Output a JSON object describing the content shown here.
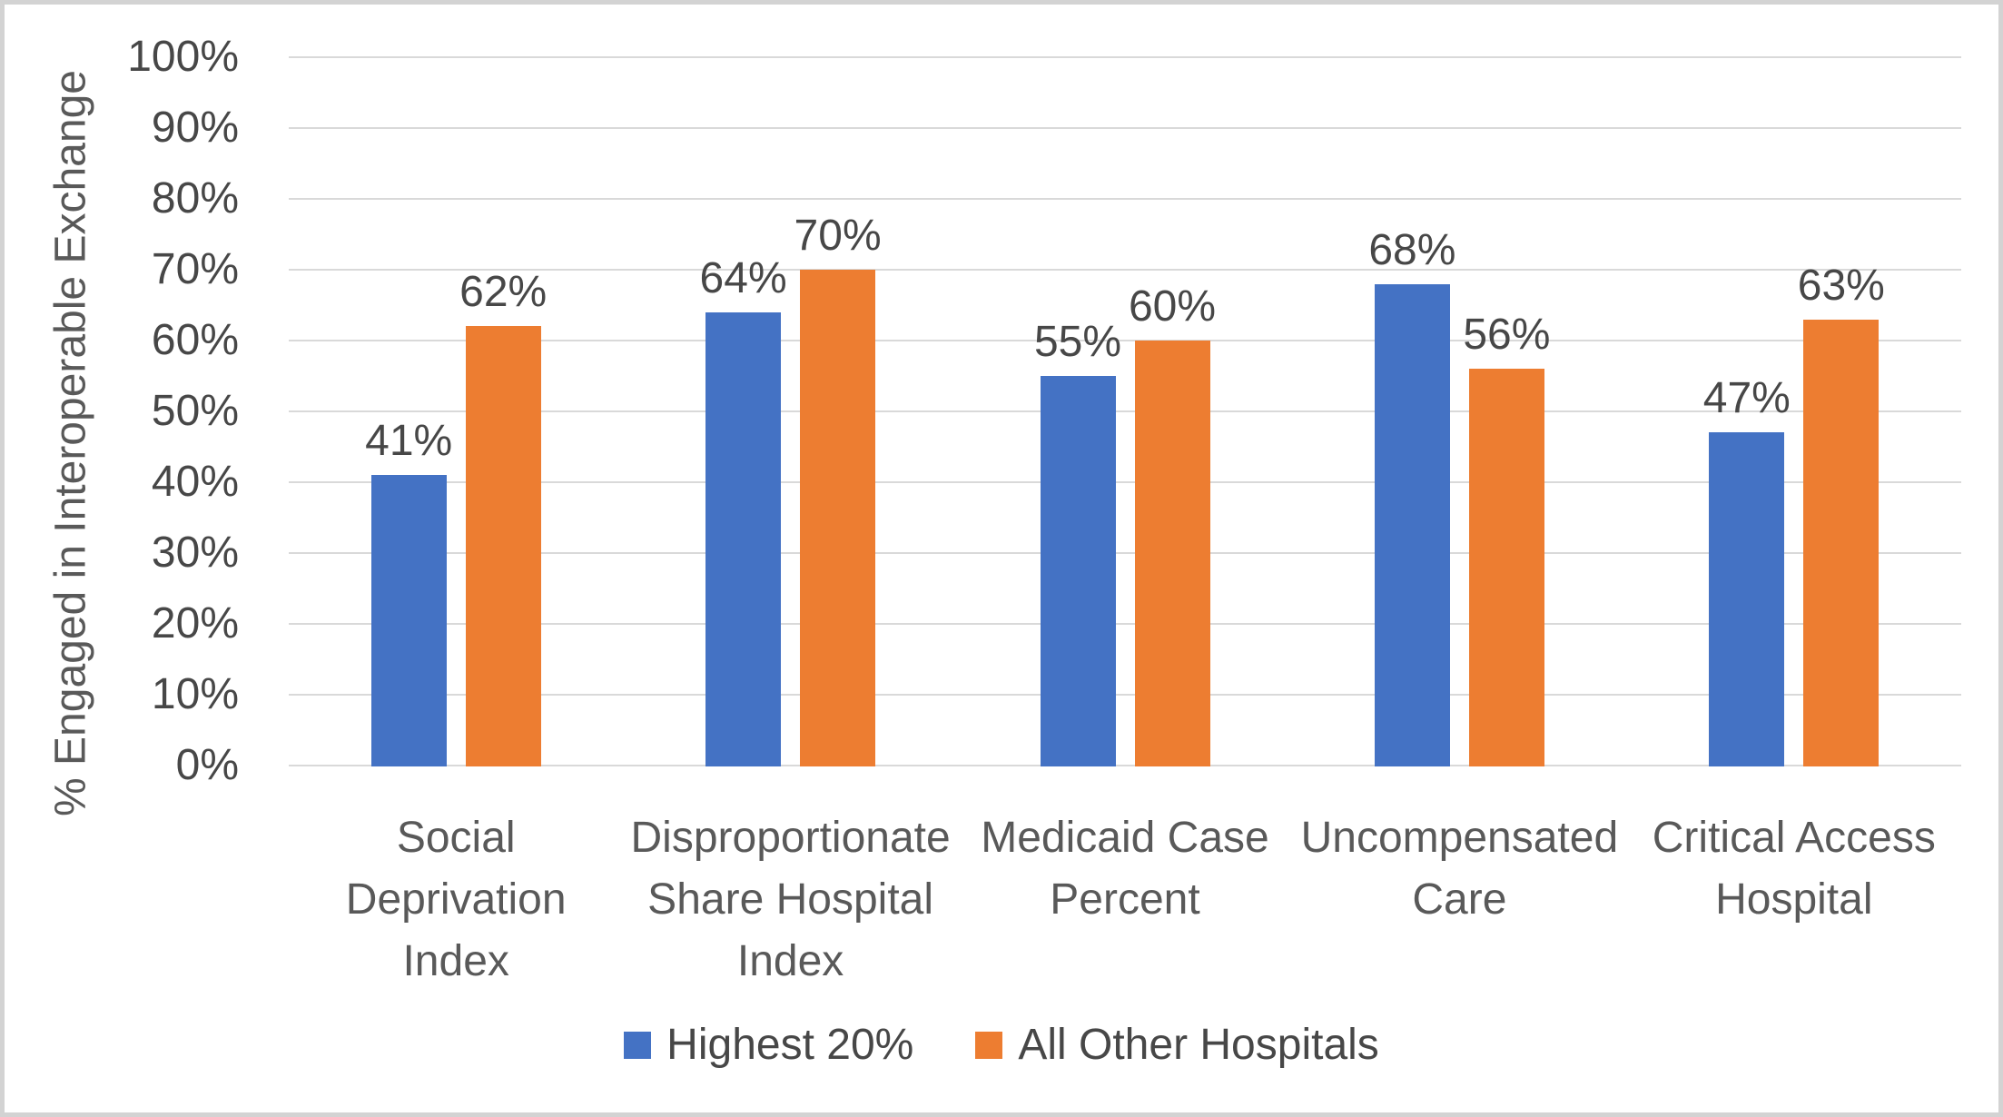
{
  "chart_data": {
    "type": "bar",
    "title": "",
    "ylabel": "% Engaged in Interoperable Exchange",
    "xlabel": "",
    "ylim": [
      0,
      100
    ],
    "ytick_step": 10,
    "ytick_labels": [
      "0%",
      "10%",
      "20%",
      "30%",
      "40%",
      "50%",
      "60%",
      "70%",
      "80%",
      "90%",
      "100%"
    ],
    "grid": true,
    "legend_position": "bottom",
    "categories": [
      "Social Deprivation Index",
      "Disproportionate Share Hospital Index",
      "Medicaid Case Percent",
      "Uncompensated Care",
      "Critical Access Hospital"
    ],
    "series": [
      {
        "name": "Highest 20%",
        "color": "#4472C4",
        "values": [
          41,
          64,
          55,
          68,
          47
        ],
        "labels": [
          "41%",
          "64%",
          "55%",
          "68%",
          "47%"
        ]
      },
      {
        "name": "All Other Hospitals",
        "color": "#ED7D31",
        "values": [
          62,
          70,
          60,
          56,
          63
        ],
        "labels": [
          "62%",
          "70%",
          "60%",
          "56%",
          "63%"
        ]
      }
    ],
    "colors": {
      "gridline": "#D9D9D9",
      "tick_text": "#474747",
      "value_label_text": "#474747",
      "category_text": "#595959",
      "axis_title_text": "#595959",
      "frame_border": "#D3D3D3",
      "background": "#FFFFFF"
    }
  }
}
